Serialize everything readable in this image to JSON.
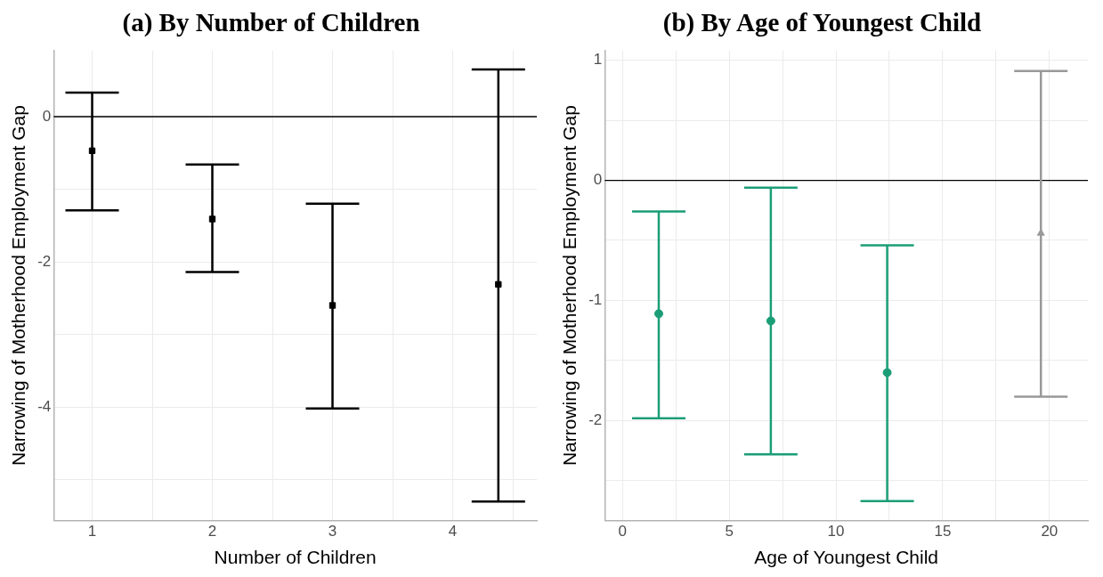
{
  "chart_data": [
    {
      "type": "scatter",
      "title": "(a) By Number of Children",
      "xlabel": "Number of Children",
      "ylabel": "Narrowing of Motherhood Employment Gap",
      "series": [
        {
          "color": "#000000",
          "marker": "square",
          "x": [
            1,
            2,
            3,
            4.38
          ],
          "values": [
            -0.47,
            -1.41,
            -2.6,
            -2.31
          ],
          "errors": [
            [
              -1.29,
              0.33
            ],
            [
              -2.14,
              -0.66
            ],
            [
              -4.02,
              -1.2
            ],
            [
              -5.3,
              0.65
            ]
          ]
        }
      ],
      "xlim": [
        0.68,
        4.7
      ],
      "xticks": [
        1,
        {
          "value": 1.5,
          "label": null
        },
        2,
        {
          "value": 2.5,
          "label": null
        },
        3,
        {
          "value": 3.5,
          "label": null
        },
        4,
        {
          "value": 4.5,
          "label": null
        }
      ],
      "ylim": [
        -5.56,
        0.91
      ],
      "yticks": [
        {
          "value": -5,
          "label": null
        },
        -4,
        {
          "value": -3,
          "label": null
        },
        -2,
        {
          "value": -1,
          "label": null
        },
        0
      ],
      "ref_lines": [
        {
          "axis": "y",
          "value": 0,
          "color": "#000000"
        }
      ],
      "grid": true,
      "legend": false
    },
    {
      "type": "scatter",
      "title": "(b) By Age of Youngest Child",
      "xlabel": "Age of Youngest Child",
      "ylabel": "Narrowing of Motherhood Employment Gap",
      "series": [
        {
          "color": "#1b9e77",
          "marker": "circle",
          "x": [
            1.7,
            6.95,
            12.4
          ],
          "values": [
            -1.11,
            -1.17,
            -1.6
          ],
          "errors": [
            [
              -1.98,
              -0.26
            ],
            [
              -2.28,
              -0.06
            ],
            [
              -2.67,
              -0.54
            ]
          ]
        },
        {
          "color": "#999999",
          "marker": "triangle",
          "x": [
            19.6
          ],
          "values": [
            -0.44
          ],
          "errors": [
            [
              -1.8,
              0.91
            ]
          ]
        }
      ],
      "xlim": [
        -0.83,
        21.8
      ],
      "xticks": [
        0,
        {
          "value": 2.5,
          "label": null
        },
        5,
        {
          "value": 7.5,
          "label": null
        },
        10,
        {
          "value": 12.5,
          "label": null
        },
        15,
        {
          "value": 17.5,
          "label": null
        },
        20
      ],
      "ylim": [
        -2.83,
        1.08
      ],
      "yticks": [
        {
          "value": -2.5,
          "label": null
        },
        -2,
        {
          "value": -1.5,
          "label": null
        },
        -1,
        {
          "value": -0.5,
          "label": null
        },
        0,
        {
          "value": 0.5,
          "label": null
        },
        1
      ],
      "ref_lines": [
        {
          "axis": "y",
          "value": 0,
          "color": "#000000"
        }
      ],
      "grid": true,
      "legend": false
    }
  ]
}
